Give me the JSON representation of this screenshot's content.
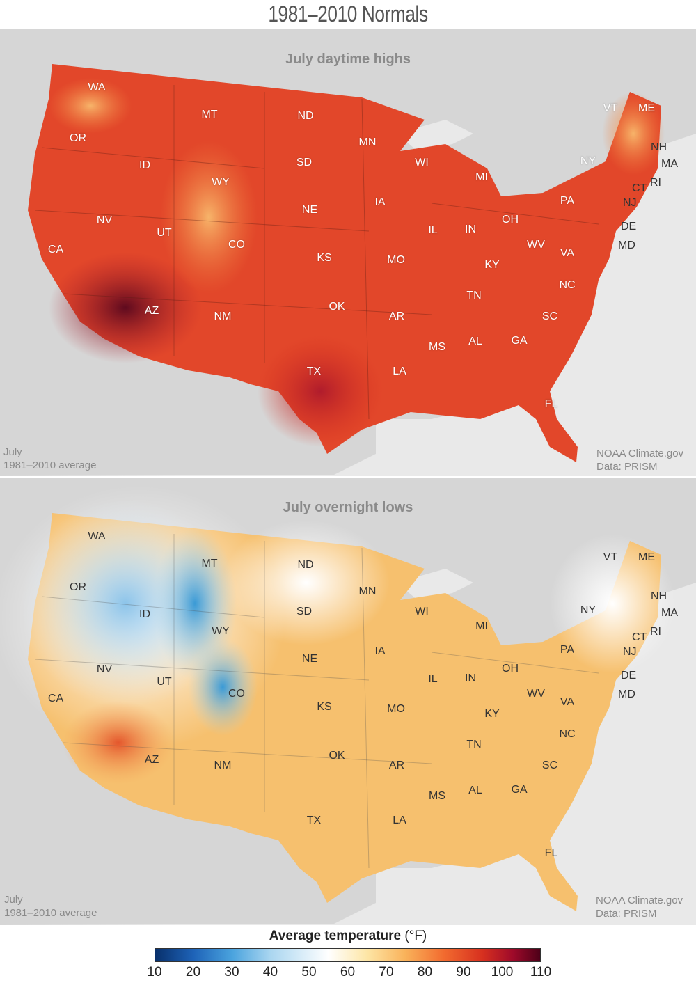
{
  "title": "1981–2010 Normals",
  "panels": [
    {
      "id": "highs",
      "title": "July daytime highs",
      "note_left": [
        "July",
        "1981–2010 average"
      ],
      "note_right": [
        "NOAA Climate.gov",
        "Data: PRISM"
      ]
    },
    {
      "id": "lows",
      "title": "July overnight lows",
      "note_left": [
        "July",
        "1981–2010 average"
      ],
      "note_right": [
        "NOAA Climate.gov",
        "Data: PRISM"
      ]
    }
  ],
  "state_labels": [
    "WA",
    "OR",
    "CA",
    "MT",
    "ID",
    "NV",
    "WY",
    "UT",
    "AZ",
    "CO",
    "NM",
    "ND",
    "SD",
    "NE",
    "KS",
    "OK",
    "TX",
    "MN",
    "IA",
    "MO",
    "AR",
    "LA",
    "WI",
    "IL",
    "MI",
    "IN",
    "MS",
    "AL",
    "TN",
    "KY",
    "OH",
    "GA",
    "FL",
    "SC",
    "NC",
    "VA",
    "WV",
    "PA",
    "NY",
    "VT",
    "ME",
    "NH",
    "MA",
    "RI",
    "CT",
    "NJ",
    "DE",
    "MD"
  ],
  "legend": {
    "title": "Average temperature",
    "unit": " (°F)",
    "ticks": [
      "10",
      "20",
      "30",
      "40",
      "50",
      "60",
      "70",
      "80",
      "90",
      "100",
      "110"
    ]
  },
  "colors": {
    "background": "#e9e9e9",
    "land_outside": "#d6d6d6",
    "highs_base": "#e2472a",
    "lows_base": "#f6c06e"
  }
}
